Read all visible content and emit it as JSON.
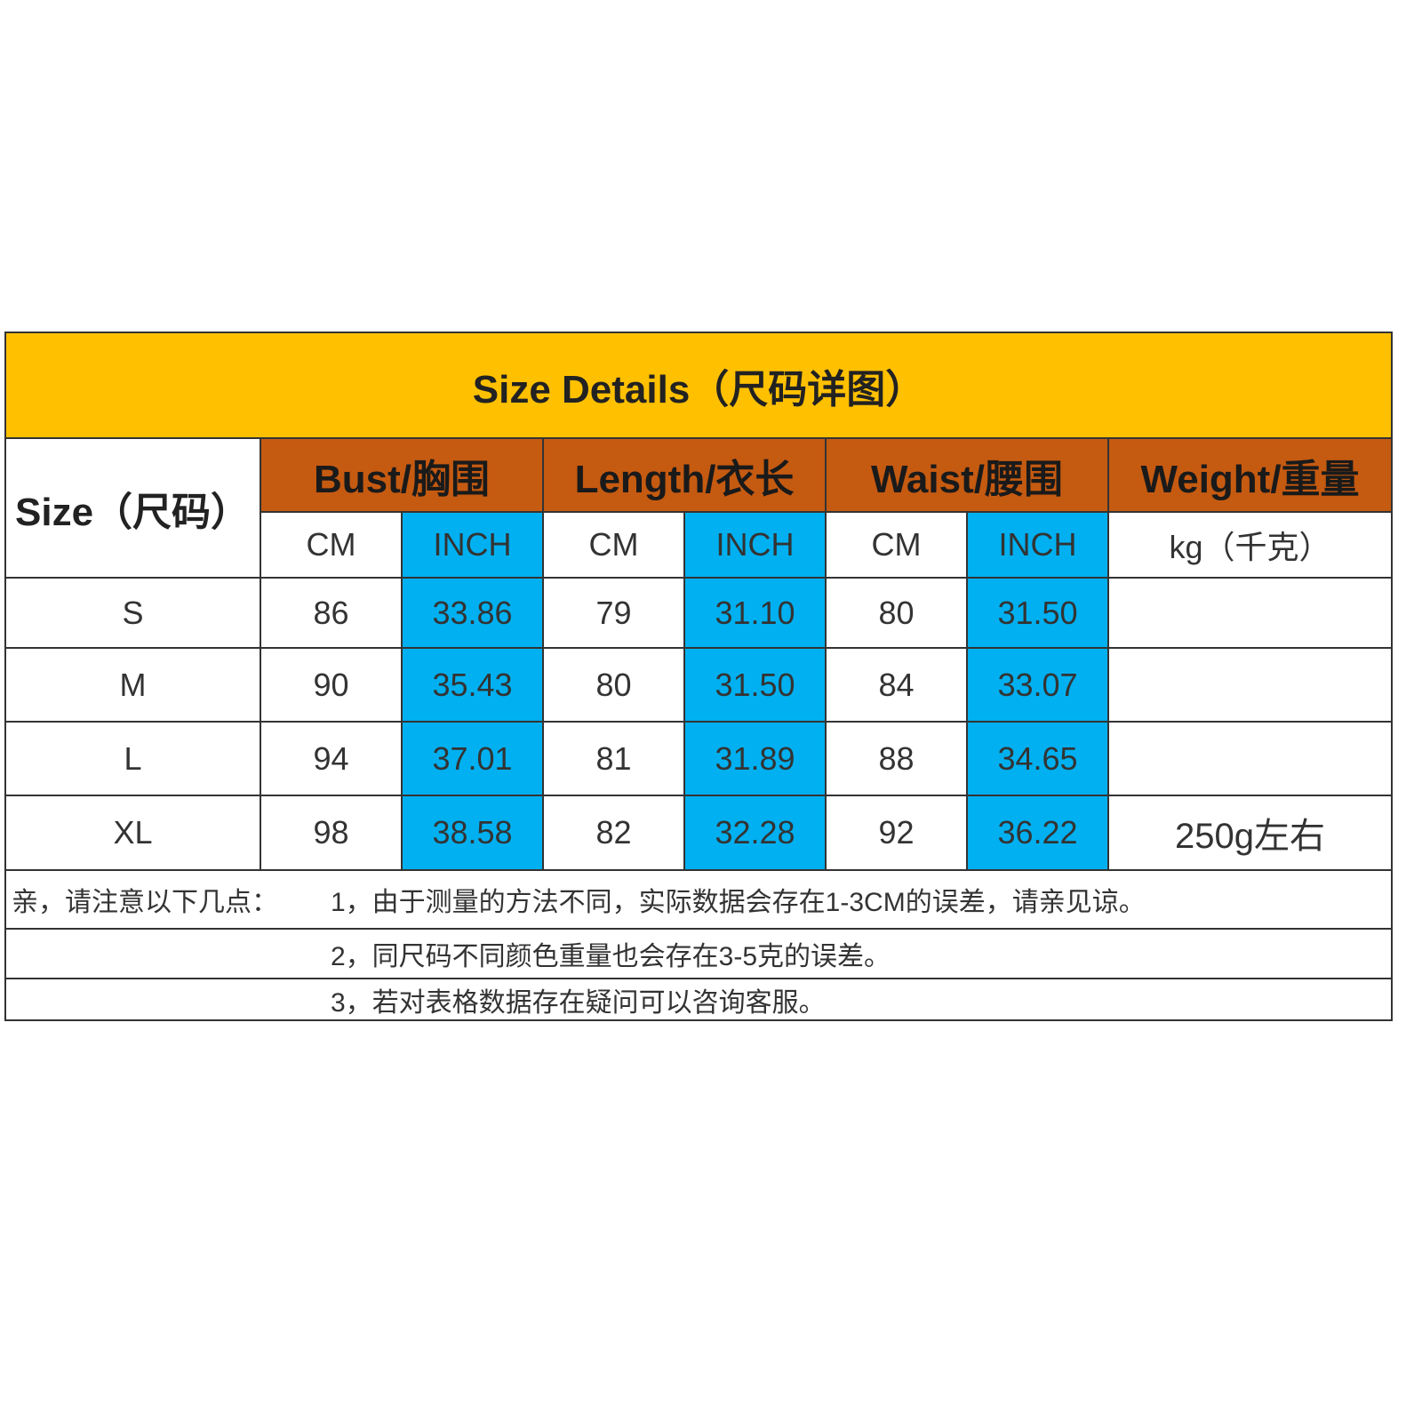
{
  "title": "Size Details（尺码详图）",
  "colors": {
    "title_bg": "#FFC000",
    "header_bg": "#C55A11",
    "inch_bg": "#00B0F0"
  },
  "headers": {
    "size": "Size（尺码）",
    "bust": "Bust/胸围",
    "length": "Length/衣长",
    "waist": "Waist/腰围",
    "weight": "Weight/重量"
  },
  "units": {
    "cm": "CM",
    "inch": "INCH",
    "kg": "kg（千克）"
  },
  "rows": [
    {
      "size": "S",
      "bust_cm": "86",
      "bust_inch": "33.86",
      "length_cm": "79",
      "length_inch": "31.10",
      "waist_cm": "80",
      "waist_inch": "31.50",
      "weight": ""
    },
    {
      "size": "M",
      "bust_cm": "90",
      "bust_inch": "35.43",
      "length_cm": "80",
      "length_inch": "31.50",
      "waist_cm": "84",
      "waist_inch": "33.07",
      "weight": ""
    },
    {
      "size": "L",
      "bust_cm": "94",
      "bust_inch": "37.01",
      "length_cm": "81",
      "length_inch": "31.89",
      "waist_cm": "88",
      "waist_inch": "34.65",
      "weight": ""
    },
    {
      "size": "XL",
      "bust_cm": "98",
      "bust_inch": "38.58",
      "length_cm": "82",
      "length_inch": "32.28",
      "waist_cm": "92",
      "waist_inch": "36.22",
      "weight": "250g左右"
    }
  ],
  "notes": {
    "lead": "亲，请注意以下几点：",
    "items": [
      "1，由于测量的方法不同，实际数据会存在1-3CM的误差，请亲见谅。",
      "2，同尺码不同颜色重量也会存在3-5克的误差。",
      "3，若对表格数据存在疑问可以咨询客服。"
    ]
  }
}
